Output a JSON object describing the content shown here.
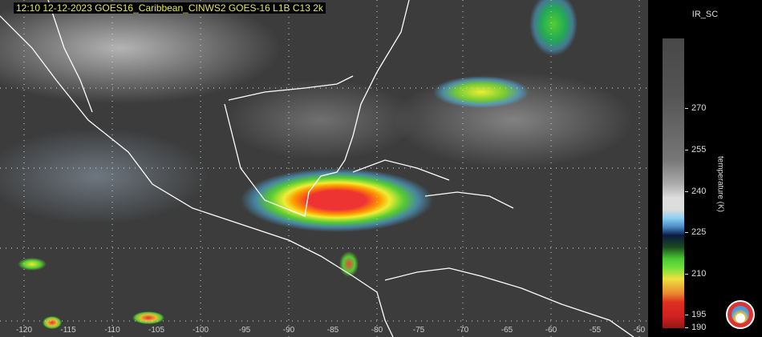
{
  "header": {
    "title": "12:10  12-12-2023 GOES16_Caribbean_CINWS2 GOES-16 L1B C13 2k"
  },
  "map": {
    "longitude_labels": [
      "-120",
      "-115",
      "-110",
      "-105",
      "-100",
      "-95",
      "-90",
      "-85",
      "-80",
      "-75",
      "-70",
      "-65",
      "-60",
      "-55",
      "-50"
    ]
  },
  "colorbar": {
    "title": "IR_SC",
    "label": "temperature (K)",
    "ticks": [
      "270",
      "255",
      "240",
      "225",
      "210",
      "195",
      "190"
    ],
    "range": [
      190,
      290
    ],
    "colors": {
      "cold": "#901818",
      "warm_core": "#e03020",
      "mid": "#f0e040",
      "green": "#4ac830",
      "dark_blue": "#0a1a40",
      "light_blue": "#8cd0f0",
      "gray": "#484848"
    }
  },
  "logo": {
    "icon": "agency-seal-icon"
  }
}
